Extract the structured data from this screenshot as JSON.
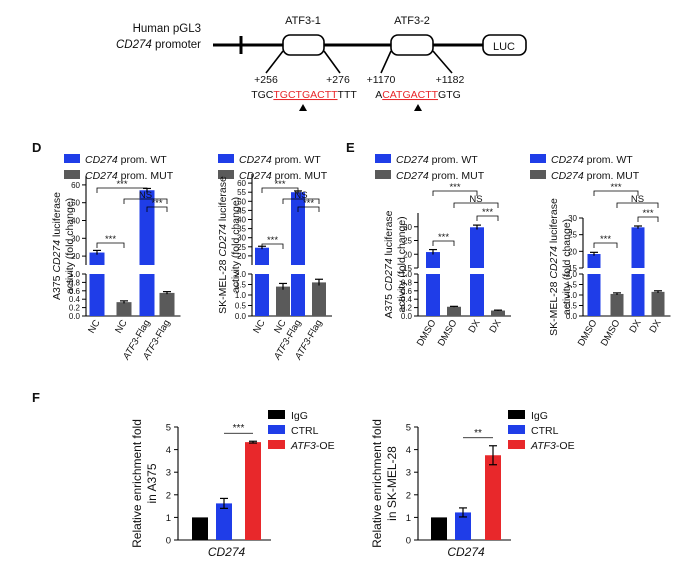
{
  "diagram": {
    "construct_label": [
      "Human pGL3",
      "CD274",
      " promoter"
    ],
    "sites": [
      {
        "name": "ATF3-1",
        "start": "+256",
        "end": "+276",
        "seq_pre": "TGC",
        "seq_site": "TGCTGACTT",
        "seq_post": "TTT"
      },
      {
        "name": "ATF3-2",
        "start": "+1170",
        "end": "+1182",
        "seq_pre": "A",
        "seq_site": "CATGACTT",
        "seq_post": "GTG"
      }
    ],
    "reporter": "LUC",
    "site_color": "#e8282b"
  },
  "panel_letters": {
    "d": "D",
    "e": "E",
    "f": "F"
  },
  "colors": {
    "wt": "#1f3de8",
    "mut": "#5a5a5a",
    "igg": "#000000",
    "ctrl": "#1f3de8",
    "oe": "#e8282b"
  },
  "legend_wt_mut": [
    {
      "gene": "CD274",
      "rest": " prom. WT",
      "color": "#1f3de8"
    },
    {
      "gene": "CD274",
      "rest": " prom. MUT",
      "color": "#5a5a5a"
    }
  ],
  "legend_f": [
    {
      "label": "IgG",
      "italic": "",
      "rest": "",
      "color": "#000000"
    },
    {
      "label": "CTRL",
      "italic": "",
      "rest": "",
      "color": "#1f3de8"
    },
    {
      "label": "",
      "italic": "ATF3",
      "rest": "-OE",
      "color": "#e8282b"
    }
  ],
  "sig": {
    "three": "***",
    "two": "**",
    "ns": "NS"
  },
  "chart_data": [
    {
      "id": "D-A375",
      "type": "bar",
      "broken_axis": true,
      "ylabel": [
        "A375 ",
        "CD274",
        " luciferase",
        "activity (fold change)"
      ],
      "lower": {
        "ylim": [
          0,
          1.0
        ],
        "ticks": [
          "0.0",
          "0.2",
          "0.4",
          "0.6",
          "0.8",
          "1.0"
        ]
      },
      "upper": {
        "ylim": [
          15,
          65
        ],
        "ticks": [
          "20",
          "30",
          "40",
          "50",
          "60"
        ]
      },
      "categories": [
        {
          "gene": "",
          "rest": "NC"
        },
        {
          "gene": "",
          "rest": "NC"
        },
        {
          "gene": "ATF3",
          "rest": "-Flag"
        },
        {
          "gene": "ATF3",
          "rest": "-Flag"
        }
      ],
      "series": [
        "WT",
        "MUT",
        "WT",
        "MUT"
      ],
      "values": [
        22,
        0.33,
        57,
        0.55
      ],
      "errors": [
        1.2,
        0.03,
        1.0,
        0.03
      ]
    },
    {
      "id": "D-SKMEL28",
      "type": "bar",
      "broken_axis": true,
      "ylabel": [
        "SK-MEL-28 ",
        "CD274",
        " luciferase",
        "activity (fold change)"
      ],
      "lower": {
        "ylim": [
          0,
          2.0
        ],
        "ticks": [
          "0.0",
          "0.5",
          "1.0",
          "1.5",
          "2.0"
        ]
      },
      "upper": {
        "ylim": [
          15,
          65
        ],
        "ticks": [
          "20",
          "25",
          "30",
          "35",
          "40",
          "45",
          "50",
          "55",
          "60"
        ]
      },
      "categories": [
        {
          "gene": "",
          "rest": "NC"
        },
        {
          "gene": "",
          "rest": "NC"
        },
        {
          "gene": "ATF3",
          "rest": "-Flag"
        },
        {
          "gene": "ATF3",
          "rest": "-Flag"
        }
      ],
      "series": [
        "WT",
        "MUT",
        "WT",
        "MUT"
      ],
      "values": [
        24.5,
        1.4,
        55,
        1.6
      ],
      "errors": [
        0.8,
        0.15,
        0.7,
        0.15
      ]
    },
    {
      "id": "E-A375",
      "type": "bar",
      "broken_axis": true,
      "ylabel": [
        "A375 ",
        "CD274",
        " luciferase",
        "activity (fold change)"
      ],
      "lower": {
        "ylim": [
          0,
          1.0
        ],
        "ticks": [
          "0.0",
          "0.2",
          "0.4",
          "0.6",
          "0.8",
          "1.0"
        ]
      },
      "upper": {
        "ylim": [
          15,
          35
        ],
        "ticks": [
          "15",
          "20",
          "25",
          "30"
        ]
      },
      "categories": [
        {
          "gene": "",
          "rest": "DMSO"
        },
        {
          "gene": "",
          "rest": "DMSO"
        },
        {
          "gene": "",
          "rest": "DX"
        },
        {
          "gene": "",
          "rest": "DX"
        }
      ],
      "series": [
        "WT",
        "MUT",
        "WT",
        "MUT"
      ],
      "values": [
        20.8,
        0.22,
        29.8,
        0.13
      ],
      "errors": [
        0.9,
        0.01,
        0.8,
        0.01
      ]
    },
    {
      "id": "E-SKMEL28",
      "type": "bar",
      "broken_axis": true,
      "ylabel": [
        "SK-MEL-28 ",
        "CD274",
        " luciferase",
        "activity (fold change)"
      ],
      "lower": {
        "ylim": [
          0,
          2.0
        ],
        "ticks": [
          "0.0",
          "0.5",
          "1.0",
          "1.5",
          "2.0"
        ]
      },
      "upper": {
        "ylim": [
          15,
          30
        ],
        "ticks": [
          "15",
          "20",
          "25",
          "30"
        ]
      },
      "categories": [
        {
          "gene": "",
          "rest": "DMSO"
        },
        {
          "gene": "",
          "rest": "DMSO"
        },
        {
          "gene": "",
          "rest": "DX"
        },
        {
          "gene": "",
          "rest": "DX"
        }
      ],
      "series": [
        "WT",
        "MUT",
        "WT",
        "MUT"
      ],
      "values": [
        19.2,
        1.05,
        27.2,
        1.15
      ],
      "errors": [
        0.5,
        0.05,
        0.4,
        0.05
      ]
    },
    {
      "id": "F-A375",
      "type": "bar",
      "ylabel": [
        "Relative enrichment fold",
        "in A375"
      ],
      "xlabel": "CD274",
      "ylim": [
        0,
        5
      ],
      "ticks": [
        "0",
        "1",
        "2",
        "3",
        "4",
        "5"
      ],
      "categories": [
        "IgG",
        "CTRL",
        "ATF3-OE"
      ],
      "values": [
        1.0,
        1.62,
        4.33
      ],
      "errors": [
        0,
        0.22,
        0.04
      ],
      "sig": "***"
    },
    {
      "id": "F-SKMEL28",
      "type": "bar",
      "ylabel": [
        "Relative enrichment fold",
        "in SK-MEL-28"
      ],
      "xlabel": "CD274",
      "ylim": [
        0,
        5
      ],
      "ticks": [
        "0",
        "1",
        "2",
        "3",
        "4",
        "5"
      ],
      "categories": [
        "IgG",
        "CTRL",
        "ATF3-OE"
      ],
      "values": [
        1.0,
        1.22,
        3.75
      ],
      "errors": [
        0,
        0.2,
        0.42
      ],
      "sig": "**"
    }
  ]
}
